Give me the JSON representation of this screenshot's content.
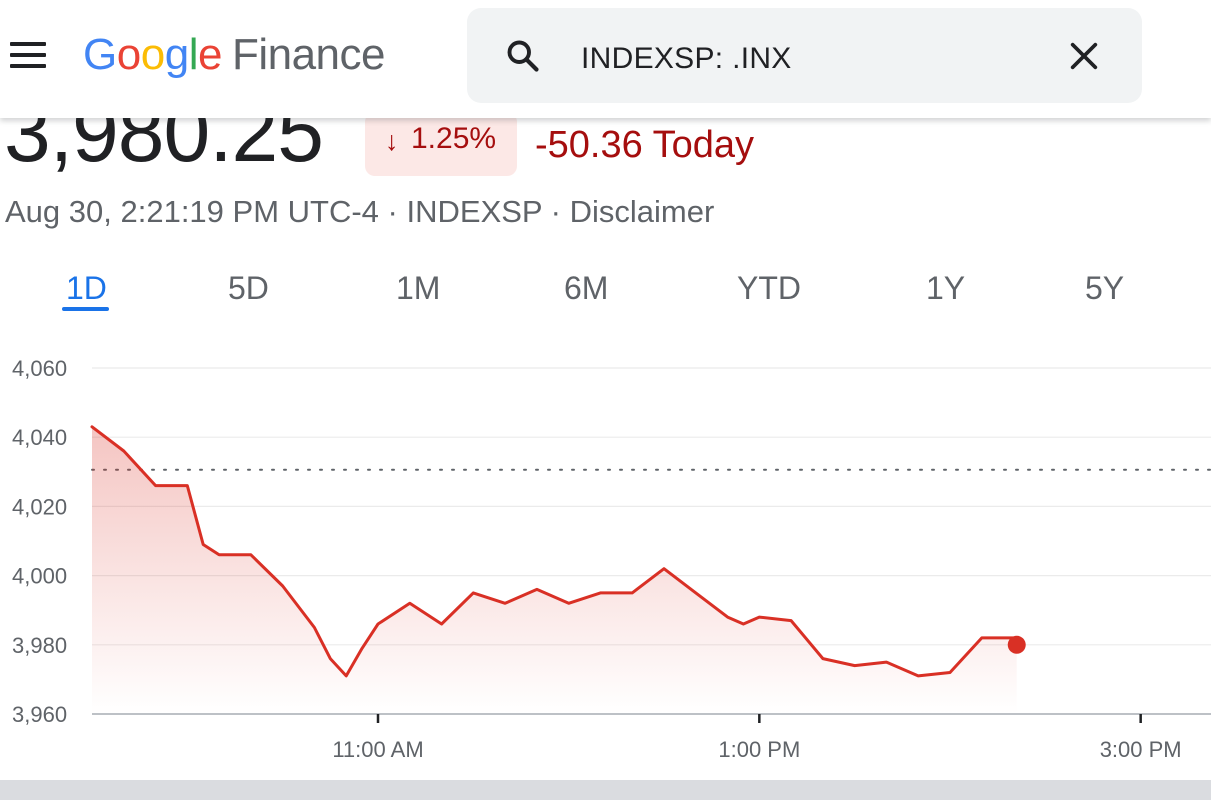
{
  "app": {
    "logo_letters": [
      {
        "char": "G",
        "color": "#4285f4"
      },
      {
        "char": "o",
        "color": "#ea4335"
      },
      {
        "char": "o",
        "color": "#fbbc05"
      },
      {
        "char": "g",
        "color": "#4285f4"
      },
      {
        "char": "l",
        "color": "#34a853"
      },
      {
        "char": "e",
        "color": "#ea4335"
      }
    ],
    "product_name": "Finance",
    "menu_icon": "hamburger-menu-icon"
  },
  "search": {
    "value": "INDEXSP: .INX",
    "icon": "search-icon",
    "clear_icon": "close-icon"
  },
  "quote": {
    "price": "3,980.25",
    "change_arrow": "↓",
    "change_percent": "1.25%",
    "change_today": "-50.36 Today",
    "timestamp": "Aug 30, 2:21:19 PM UTC-4",
    "exchange": "INDEXSP",
    "disclaimer": "Disclaimer",
    "separator": "·"
  },
  "tabs": [
    {
      "label": "1D",
      "active": true
    },
    {
      "label": "5D",
      "active": false
    },
    {
      "label": "1M",
      "active": false
    },
    {
      "label": "6M",
      "active": false
    },
    {
      "label": "YTD",
      "active": false
    },
    {
      "label": "1Y",
      "active": false
    },
    {
      "label": "5Y",
      "active": false
    }
  ],
  "colors": {
    "negative": "#a50e0e",
    "negative_bg": "#fce8e6",
    "line": "#d93025",
    "accent": "#1a73e8"
  },
  "chart_data": {
    "type": "line",
    "y_ticks": [
      "4,060",
      "4,040",
      "4,020",
      "4,000",
      "3,980",
      "3,960"
    ],
    "ylim": [
      3960,
      4060
    ],
    "x_ticks": [
      "11:00 AM",
      "1:00 PM",
      "3:00 PM"
    ],
    "xlim": [
      "9:30 AM",
      "3:00 PM"
    ],
    "previous_close": 4030.6,
    "series": [
      {
        "x": [
          "9:30",
          "9:40",
          "9:50",
          "10:00",
          "10:05",
          "10:10",
          "10:20",
          "10:30",
          "10:40",
          "10:45",
          "10:50",
          "10:55",
          "11:00",
          "11:10",
          "11:20",
          "11:30",
          "11:40",
          "11:50",
          "12:00",
          "12:10",
          "12:20",
          "12:30",
          "12:40",
          "12:50",
          "12:55",
          "13:00",
          "13:10",
          "13:20",
          "13:30",
          "13:40",
          "13:50",
          "14:00",
          "14:10",
          "14:20",
          "14:21"
        ],
        "y": [
          4043,
          4036,
          4026,
          4026,
          4009,
          4006,
          4006,
          3997,
          3985,
          3976,
          3971,
          3979,
          3986,
          3992,
          3986,
          3995,
          3992,
          3996,
          3992,
          3995,
          3995,
          4002,
          3995,
          3988,
          3986,
          3988,
          3987,
          3976,
          3974,
          3975,
          3971,
          3972,
          3982,
          3982,
          3980
        ]
      }
    ]
  }
}
